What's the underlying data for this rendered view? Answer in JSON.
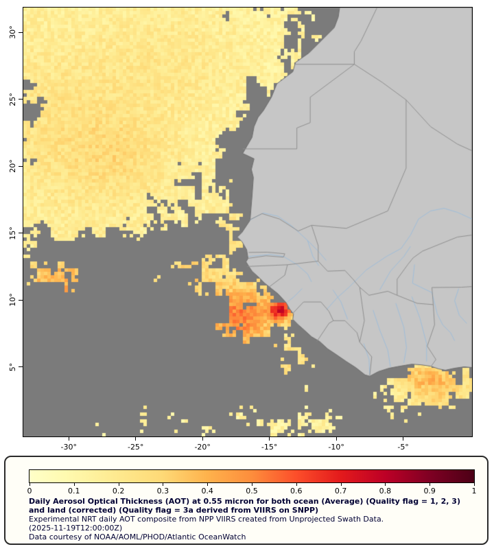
{
  "map": {
    "lat_tick_labels": [
      "30°",
      "25°",
      "20°",
      "15°",
      "10°",
      "5°"
    ],
    "lat_tick_values": [
      30,
      25,
      20,
      15,
      10,
      5
    ],
    "lon_tick_labels": [
      "-30°",
      "-25°",
      "-20°",
      "-15°",
      "-10°",
      "-5°"
    ],
    "lon_tick_values": [
      -30,
      -25,
      -20,
      -15,
      -10,
      -5
    ]
  },
  "legend": {
    "tick_labels": [
      "0",
      "0.1",
      "0.2",
      "0.3",
      "0.4",
      "0.5",
      "0.6",
      "0.7",
      "0.8",
      "0.9",
      "1"
    ],
    "tick_values": [
      0,
      0.1,
      0.2,
      0.3,
      0.4,
      0.5,
      0.6,
      0.7,
      0.8,
      0.9,
      1
    ],
    "stops": [
      [
        0.0,
        "#ffffc8"
      ],
      [
        0.08,
        "#fffab0"
      ],
      [
        0.2,
        "#fee98e"
      ],
      [
        0.3,
        "#fed976"
      ],
      [
        0.4,
        "#feb24c"
      ],
      [
        0.5,
        "#fd8d3c"
      ],
      [
        0.6,
        "#fc4e2a"
      ],
      [
        0.7,
        "#e31a1c"
      ],
      [
        0.8,
        "#bd0026"
      ],
      [
        0.9,
        "#7f0023"
      ],
      [
        1.0,
        "#4c0016"
      ]
    ]
  },
  "caption": {
    "title": "Daily Aerosol Optical Thickness (AOT) at 0.55 micron for both ocean (Average) (Quality flag = 1, 2, 3) and land (corrected) (Quality flag = 3a derived from VIIRS on SNPP)",
    "line2": "Experimental NRT daily AOT composite from NPP VIIRS created from Unprojected Swath Data.",
    "timestamp": "(2025-11-19T12:00:00Z)",
    "courtesy": "Data courtesy of NOAA/AOML/PHOD/Atlantic OceanWatch"
  },
  "colors": {
    "page_bg": "#ffffff",
    "ocean_nodata": "#7b7b7b",
    "land": "#c6c6c6",
    "coastline": "#6e6e6e",
    "country_border": "#8f8f8f",
    "river": "#9fbeda",
    "map_frame": "#000000",
    "caption_text": "#000033",
    "legend_border": "#000000",
    "box_border": "#2a2a2a",
    "box_bg": "#fffef7",
    "axis_text": "#000000"
  }
}
